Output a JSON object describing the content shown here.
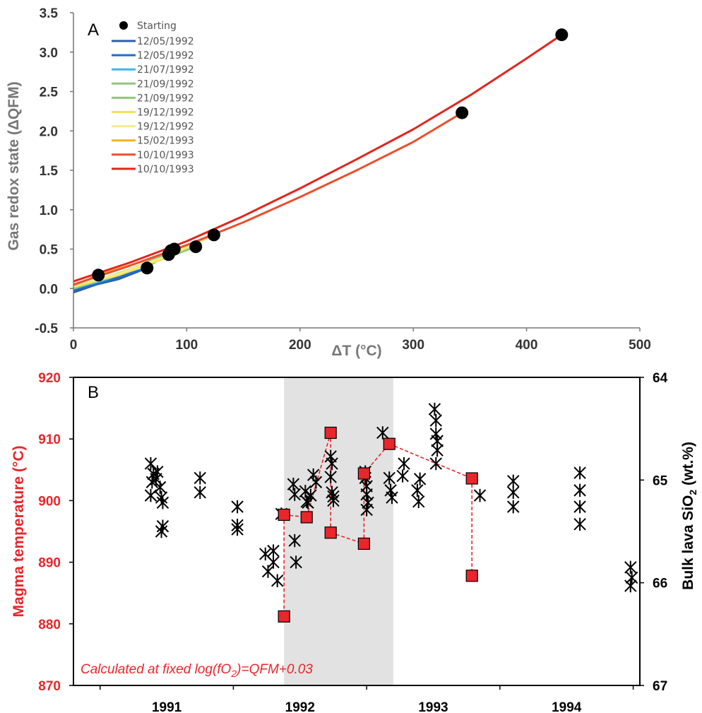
{
  "colors": {
    "red_accent": "#e8262b",
    "axis_gray": "#777777",
    "shade": "#e2e2e2"
  },
  "chart_data": [
    {
      "type": "line",
      "panel_label": "A",
      "xlabel": "ΔT (°C)",
      "ylabel": "Gas redox state (ΔQFM)",
      "xlim": [
        0,
        500
      ],
      "ylim": [
        -0.5,
        3.5
      ],
      "x_ticks": [
        "0",
        "100",
        "200",
        "300",
        "400",
        "500"
      ],
      "y_ticks": [
        "-0.5",
        "0.0",
        "0.5",
        "1.0",
        "1.5",
        "2.0",
        "2.5",
        "3.0",
        "3.5"
      ],
      "grid": false,
      "legend_position": "top-left",
      "starting_label": "Starting",
      "starting_points": [
        {
          "x": 22,
          "y": 0.17
        },
        {
          "x": 65,
          "y": 0.26
        },
        {
          "x": 84,
          "y": 0.43
        },
        {
          "x": 86,
          "y": 0.48
        },
        {
          "x": 89,
          "y": 0.5
        },
        {
          "x": 108,
          "y": 0.53
        },
        {
          "x": 124,
          "y": 0.68
        },
        {
          "x": 343,
          "y": 2.23
        },
        {
          "x": 431,
          "y": 3.22
        }
      ],
      "series": [
        {
          "name": "12/05/1992",
          "color": "#2e5ea8",
          "x": [
            0,
            20,
            40,
            65
          ],
          "y": [
            -0.05,
            0.05,
            0.12,
            0.26
          ]
        },
        {
          "name": "12/05/1992",
          "color": "#1f6fc4",
          "x": [
            0,
            30,
            60,
            84
          ],
          "y": [
            -0.02,
            0.1,
            0.24,
            0.43
          ]
        },
        {
          "name": "21/07/1992",
          "color": "#3fb7e8",
          "x": [
            0,
            30,
            60,
            86
          ],
          "y": [
            0.0,
            0.12,
            0.28,
            0.48
          ]
        },
        {
          "name": "21/09/1992",
          "color": "#93c47d",
          "x": [
            0,
            30,
            60,
            89
          ],
          "y": [
            0.0,
            0.14,
            0.3,
            0.5
          ]
        },
        {
          "name": "21/09/1992",
          "color": "#8fc878",
          "x": [
            0,
            30,
            70,
            108
          ],
          "y": [
            0.01,
            0.15,
            0.33,
            0.53
          ]
        },
        {
          "name": "19/12/1992",
          "color": "#f2e35a",
          "x": [
            0,
            40,
            80,
            124
          ],
          "y": [
            0.02,
            0.17,
            0.38,
            0.68
          ]
        },
        {
          "name": "19/12/1992",
          "color": "#f6ec8a",
          "x": [
            0,
            40,
            80,
            124
          ],
          "y": [
            0.03,
            0.19,
            0.4,
            0.68
          ]
        },
        {
          "name": "15/02/1993",
          "color": "#f5b324",
          "x": [
            0,
            22,
            60,
            124
          ],
          "y": [
            0.04,
            0.17,
            0.34,
            0.68
          ]
        },
        {
          "name": "10/10/1993",
          "color": "#e8502e",
          "x": [
            0,
            50,
            100,
            150,
            200,
            250,
            300,
            343
          ],
          "y": [
            0.05,
            0.29,
            0.55,
            0.84,
            1.16,
            1.5,
            1.86,
            2.23
          ]
        },
        {
          "name": "10/10/1993",
          "color": "#e0261f",
          "x": [
            0,
            50,
            100,
            150,
            200,
            250,
            300,
            350,
            400,
            431
          ],
          "y": [
            0.09,
            0.33,
            0.6,
            0.92,
            1.27,
            1.64,
            2.02,
            2.45,
            2.92,
            3.22
          ]
        }
      ]
    },
    {
      "type": "scatter",
      "panel_label": "B",
      "ylabel_left": "Magma temperature (°C)",
      "ylabel_right": "Bulk lava SiO",
      "ylabel_right_sub": "2",
      "ylabel_right_tail": " (wt.%)",
      "xlim": [
        1990.3,
        1994.55
      ],
      "ylim_left": [
        870,
        920
      ],
      "ylim_right": [
        67,
        64
      ],
      "x_ticks": [
        "1991",
        "1992",
        "1993",
        "1994"
      ],
      "y_ticks_left": [
        "870",
        "880",
        "890",
        "900",
        "910",
        "920"
      ],
      "y_ticks_right": [
        "67",
        "66",
        "65",
        "64"
      ],
      "grid": false,
      "shaded_range": [
        1991.88,
        1992.7
      ],
      "annotation": "Calculated at fixed log(fO",
      "annotation_sub": "2",
      "annotation_tail": ")=QFM+0.03",
      "temperature_points": [
        {
          "x": 1991.88,
          "y": 897.7
        },
        {
          "x": 1991.88,
          "y": 881.2
        },
        {
          "x": 1992.05,
          "y": 897.3
        },
        {
          "x": 1992.23,
          "y": 911.0
        },
        {
          "x": 1992.23,
          "y": 894.8
        },
        {
          "x": 1992.48,
          "y": 893.0
        },
        {
          "x": 1992.48,
          "y": 904.4
        },
        {
          "x": 1992.67,
          "y": 909.2
        },
        {
          "x": 1993.29,
          "y": 903.6
        },
        {
          "x": 1993.29,
          "y": 887.8
        }
      ],
      "temperature_path": [
        [
          0,
          1
        ],
        [
          0,
          2
        ],
        [
          2,
          3
        ],
        [
          3,
          4
        ],
        [
          4,
          5
        ],
        [
          5,
          6
        ],
        [
          6,
          7
        ],
        [
          7,
          8
        ],
        [
          8,
          9
        ]
      ],
      "sio2_points": [
        {
          "x": 1990.88,
          "y": 64.84
        },
        {
          "x": 1990.9,
          "y": 64.94
        },
        {
          "x": 1990.89,
          "y": 65.02
        },
        {
          "x": 1990.88,
          "y": 65.15
        },
        {
          "x": 1990.92,
          "y": 64.99
        },
        {
          "x": 1990.93,
          "y": 64.92
        },
        {
          "x": 1990.96,
          "y": 65.17
        },
        {
          "x": 1990.97,
          "y": 65.22
        },
        {
          "x": 1990.95,
          "y": 65.07
        },
        {
          "x": 1990.96,
          "y": 65.5
        },
        {
          "x": 1990.97,
          "y": 65.45
        },
        {
          "x": 1991.25,
          "y": 64.98
        },
        {
          "x": 1991.25,
          "y": 65.12
        },
        {
          "x": 1991.53,
          "y": 65.26
        },
        {
          "x": 1991.53,
          "y": 65.44
        },
        {
          "x": 1991.53,
          "y": 65.48
        },
        {
          "x": 1991.74,
          "y": 65.72
        },
        {
          "x": 1991.76,
          "y": 65.89
        },
        {
          "x": 1991.8,
          "y": 65.69
        },
        {
          "x": 1991.8,
          "y": 65.8
        },
        {
          "x": 1991.83,
          "y": 65.98
        },
        {
          "x": 1991.86,
          "y": 65.33
        },
        {
          "x": 1991.95,
          "y": 65.04
        },
        {
          "x": 1991.96,
          "y": 65.14
        },
        {
          "x": 1991.96,
          "y": 65.59
        },
        {
          "x": 1991.97,
          "y": 65.8
        },
        {
          "x": 1992.04,
          "y": 65.11
        },
        {
          "x": 1992.05,
          "y": 65.21
        },
        {
          "x": 1992.06,
          "y": 65.22
        },
        {
          "x": 1992.08,
          "y": 65.15
        },
        {
          "x": 1992.1,
          "y": 64.95
        },
        {
          "x": 1992.12,
          "y": 65.02
        },
        {
          "x": 1992.23,
          "y": 64.77
        },
        {
          "x": 1992.24,
          "y": 64.84
        },
        {
          "x": 1992.23,
          "y": 64.97
        },
        {
          "x": 1992.24,
          "y": 65.12
        },
        {
          "x": 1992.25,
          "y": 65.2
        },
        {
          "x": 1992.25,
          "y": 65.16
        },
        {
          "x": 1992.49,
          "y": 64.92
        },
        {
          "x": 1992.49,
          "y": 64.98
        },
        {
          "x": 1992.5,
          "y": 65.06
        },
        {
          "x": 1992.5,
          "y": 65.14
        },
        {
          "x": 1992.51,
          "y": 65.22
        },
        {
          "x": 1992.5,
          "y": 65.29
        },
        {
          "x": 1992.62,
          "y": 64.54
        },
        {
          "x": 1992.67,
          "y": 64.98
        },
        {
          "x": 1992.68,
          "y": 65.1
        },
        {
          "x": 1992.69,
          "y": 65.17
        },
        {
          "x": 1992.77,
          "y": 64.96
        },
        {
          "x": 1992.78,
          "y": 64.84
        },
        {
          "x": 1992.88,
          "y": 65.1
        },
        {
          "x": 1992.89,
          "y": 65.21
        },
        {
          "x": 1992.9,
          "y": 64.99
        },
        {
          "x": 1993.01,
          "y": 64.31
        },
        {
          "x": 1993.02,
          "y": 64.42
        },
        {
          "x": 1993.02,
          "y": 64.55
        },
        {
          "x": 1993.03,
          "y": 64.62
        },
        {
          "x": 1993.03,
          "y": 64.71
        },
        {
          "x": 1993.02,
          "y": 64.84
        },
        {
          "x": 1993.35,
          "y": 65.15
        },
        {
          "x": 1993.6,
          "y": 65.01
        },
        {
          "x": 1993.6,
          "y": 65.12
        },
        {
          "x": 1993.6,
          "y": 65.26
        },
        {
          "x": 1994.1,
          "y": 64.93
        },
        {
          "x": 1994.1,
          "y": 65.1
        },
        {
          "x": 1994.1,
          "y": 65.26
        },
        {
          "x": 1994.1,
          "y": 65.43
        },
        {
          "x": 1994.48,
          "y": 65.85
        },
        {
          "x": 1994.49,
          "y": 65.95
        },
        {
          "x": 1994.48,
          "y": 66.03
        }
      ]
    }
  ]
}
